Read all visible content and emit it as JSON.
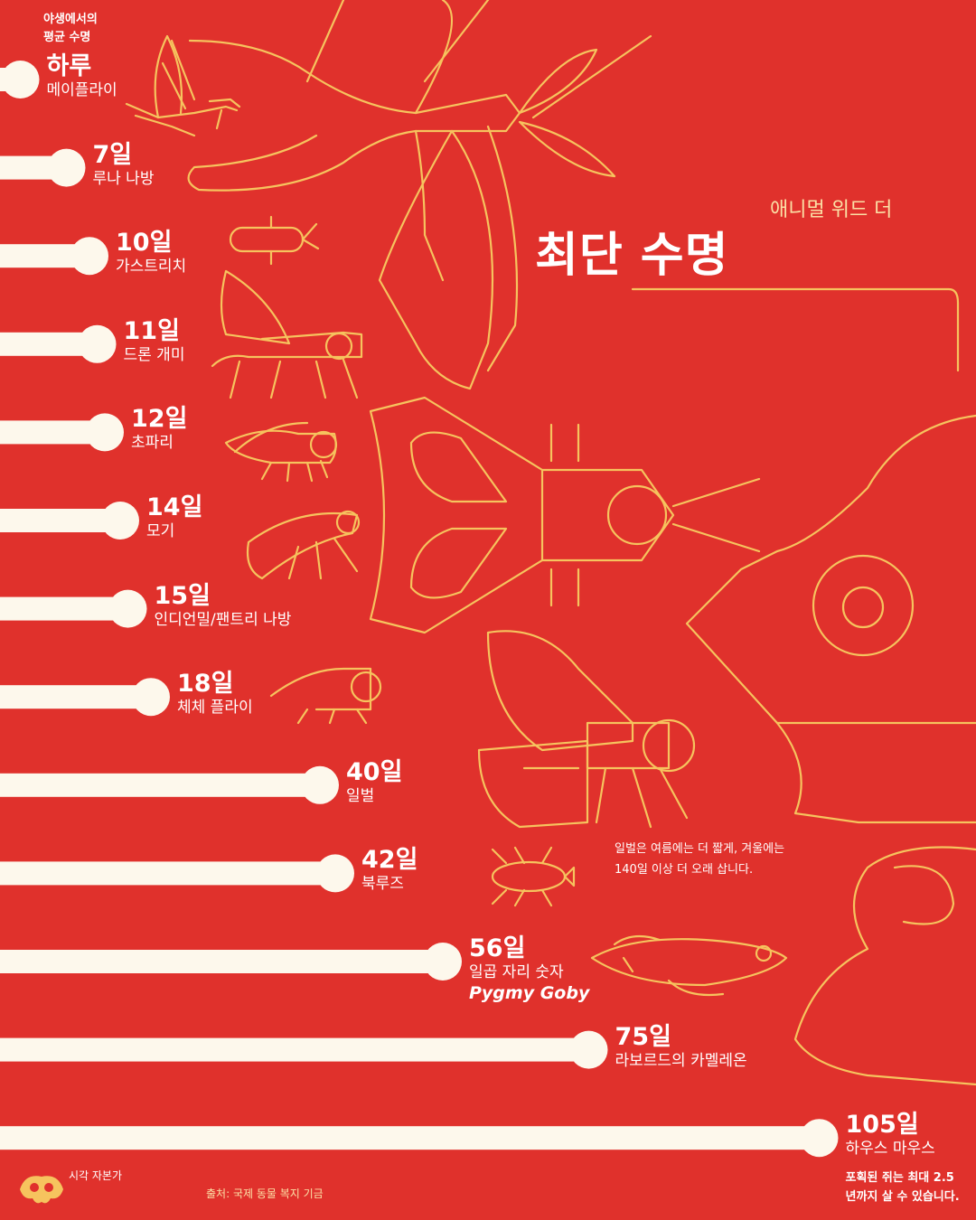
{
  "header_note": [
    "야생에서의",
    "평균 수명"
  ],
  "title": {
    "sub": "애니멀 위드 더",
    "main": "최단 수명"
  },
  "chart_data": {
    "type": "bar",
    "orientation": "horizontal",
    "unit": "일",
    "categories": [
      "메이플라이",
      "루나 나방",
      "가스트리치",
      "드론 개미",
      "초파리",
      "모기",
      "인디언밀/팬트리 나방",
      "체체 플라이",
      "일벌",
      "북루즈",
      "일곱 자리 숫자",
      "라보르드의 카멜레온",
      "하우스 마우스"
    ],
    "values": [
      1,
      7,
      10,
      11,
      12,
      14,
      15,
      18,
      40,
      42,
      56,
      75,
      105
    ],
    "value_labels": [
      "하루",
      "7일",
      "10일",
      "11일",
      "12일",
      "14일",
      "15일",
      "18일",
      "40일",
      "42일",
      "56일",
      "75일",
      "105일"
    ],
    "english_names": {
      "10": "Pygmy Goby"
    },
    "colors": {
      "background": "#e0312c",
      "bar": "#fdf8ec",
      "lineart": "#f6c35e"
    }
  },
  "bee_note": [
    "일벌은 여름에는 더 짧게, 겨울에는",
    "140일 이상 더 오래 삽니다."
  ],
  "mouse_note": [
    "포획된 쥐는 최대 2.5",
    "년까지 살 수 있습니다."
  ],
  "brand": "시각 자본가",
  "source": "출처: 국제 동물 복지 기금"
}
